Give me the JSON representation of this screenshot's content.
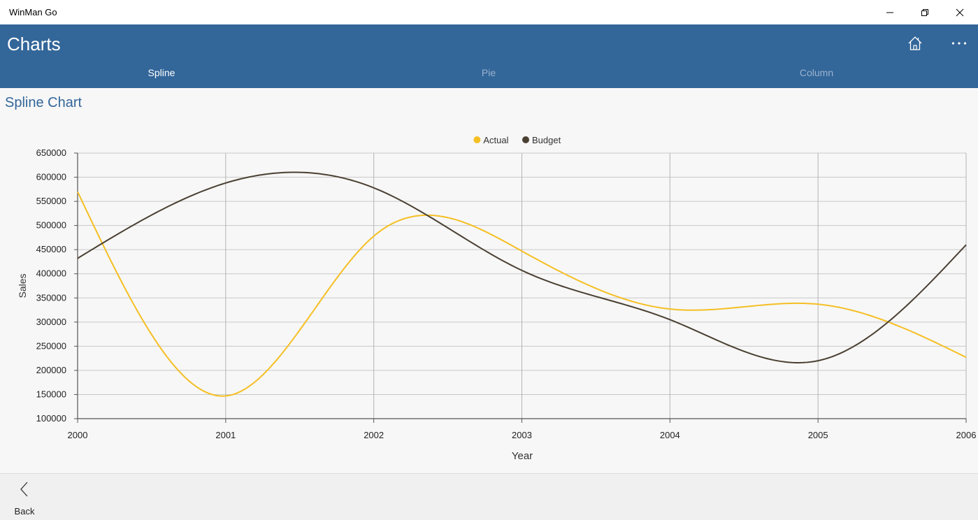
{
  "app": {
    "title": "WinMan Go"
  },
  "header": {
    "title": "Charts"
  },
  "tabs": [
    {
      "label": "Spline",
      "active": true
    },
    {
      "label": "Pie",
      "active": false
    },
    {
      "label": "Column",
      "active": false
    }
  ],
  "content": {
    "title": "Spline Chart"
  },
  "footer": {
    "back_label": "Back"
  },
  "colors": {
    "accent": "#336699",
    "actual": "#f5bf23",
    "budget": "#4a4032",
    "tab_active": "#ffffff",
    "tab_inactive": "#9bb3cf"
  },
  "icons": {
    "home": "home-icon",
    "more": "more-icon",
    "back": "back-arrow-icon"
  },
  "chart_data": {
    "type": "line",
    "title": "",
    "xlabel": "Year",
    "ylabel": "Sales",
    "categories": [
      "2000",
      "2001",
      "2002",
      "2003",
      "2004",
      "2005",
      "2006"
    ],
    "ylim": [
      100000,
      650000
    ],
    "ytick_step": 50000,
    "legend": "top-center",
    "grid": true,
    "series": [
      {
        "name": "Actual",
        "color": "#f5bf23",
        "values": [
          570000,
          147000,
          478000,
          447000,
          327000,
          337000,
          227000
        ]
      },
      {
        "name": "Budget",
        "color": "#4a4032",
        "values": [
          432000,
          588000,
          578000,
          407000,
          305000,
          220000,
          460000
        ]
      }
    ]
  }
}
